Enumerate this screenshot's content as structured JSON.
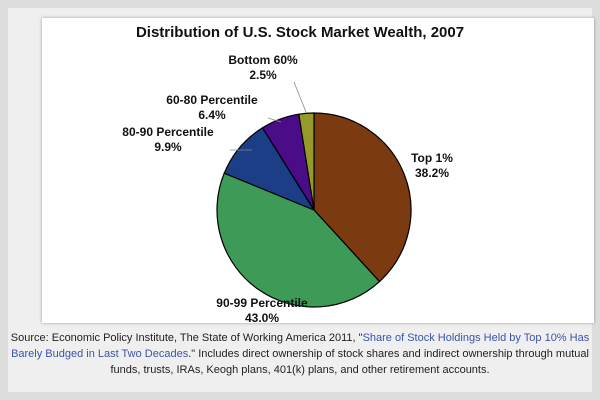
{
  "chart_data": {
    "type": "pie",
    "title": "Distribution of U.S. Stock Market Wealth, 2007",
    "slices": [
      {
        "label": "Top 1%",
        "value": 38.2,
        "display": "38.2%",
        "color": "#7b3a10"
      },
      {
        "label": "90-99 Percentile",
        "value": 43.0,
        "display": "43.0%",
        "color": "#3d9a57"
      },
      {
        "label": "80-90 Percentile",
        "value": 9.9,
        "display": "9.9%",
        "color": "#1b3e87"
      },
      {
        "label": "60-80 Percentile",
        "value": 6.4,
        "display": "6.4%",
        "color": "#4a0c87"
      },
      {
        "label": "Bottom 60%",
        "value": 2.5,
        "display": "2.5%",
        "color": "#969a2a"
      }
    ]
  },
  "source": {
    "prefix": "Source: Economic Policy Institute, The State of Working America 2011, \"",
    "link_text": "Share of Stock Holdings Held by Top 10% Has Barely Budged in Last Two Decades",
    "suffix": ".\" Includes direct ownership of stock shares and indirect ownership through mutual funds, trusts, IRAs, Keogh plans, 401(k) plans, and other retirement accounts."
  }
}
